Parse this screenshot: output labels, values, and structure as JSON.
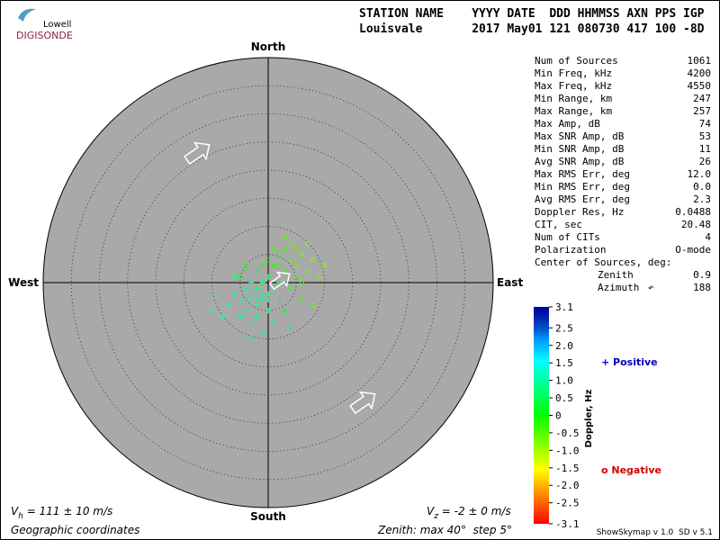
{
  "logo": {
    "top": "Lowell",
    "bottom": "DIGISONDE"
  },
  "header": {
    "labels": "STATION NAME    YYYY DATE  DDD HHMMSS AXN PPS IGP",
    "values": "Louisvale       2017 May01 121 080730 417 100 -8D"
  },
  "stats": [
    [
      "Num of Sources",
      "1061"
    ],
    [
      "Min Freq, kHz",
      "4200"
    ],
    [
      "Max Freq, kHz",
      "4550"
    ],
    [
      "Min Range, km",
      "247"
    ],
    [
      "Max Range, km",
      "257"
    ],
    [
      "Max Amp, dB",
      "74"
    ],
    [
      "Max SNR Amp, dB",
      "53"
    ],
    [
      "Min SNR Amp, dB",
      "11"
    ],
    [
      "Avg SNR Amp, dB",
      "26"
    ],
    [
      "Max RMS Err, deg",
      "12.0"
    ],
    [
      "Min RMS Err, deg",
      "0.0"
    ],
    [
      "Avg RMS Err, deg",
      "2.3"
    ],
    [
      "Doppler Res, Hz",
      "0.0488"
    ],
    [
      "CIT, sec",
      "20.48"
    ],
    [
      "Num of CITs",
      "4"
    ],
    [
      "Polarization",
      "O-mode"
    ]
  ],
  "center": {
    "title": "Center of Sources, deg:",
    "zenith_label": "Zenith",
    "zenith": "0.9",
    "azimuth_label": "Azimuth",
    "azimuth": "188"
  },
  "plot": {
    "north": "North",
    "south": "South",
    "east": "East",
    "west": "West",
    "zenith_max": 40,
    "zenith_step": 5,
    "sources": [
      [
        -2,
        -1,
        0.8
      ],
      [
        -3,
        -2,
        1.0
      ],
      [
        -1,
        -3,
        0.9
      ],
      [
        -4,
        -1,
        1.1
      ],
      [
        0,
        -2,
        0.6
      ],
      [
        -2,
        -4,
        1.0
      ],
      [
        -5,
        -3,
        1.2
      ],
      [
        -3,
        0,
        0.7
      ],
      [
        1,
        -1,
        0.5
      ],
      [
        -1,
        0,
        0.6
      ],
      [
        -6,
        -2,
        1.0
      ],
      [
        -4,
        -5,
        1.1
      ],
      [
        -2,
        -6,
        0.9
      ],
      [
        0,
        -5,
        0.7
      ],
      [
        2,
        -3,
        0.5
      ],
      [
        -7,
        -4,
        1.3
      ],
      [
        -3,
        -7,
        1.0
      ],
      [
        -8,
        -6,
        1.2
      ],
      [
        1,
        -7,
        0.8
      ],
      [
        -1,
        -9,
        0.9
      ],
      [
        3,
        -5,
        0.4
      ],
      [
        -5,
        -6,
        1.1
      ],
      [
        -9,
        -2,
        1.2
      ],
      [
        -6,
        1,
        0.8
      ],
      [
        -2,
        2,
        0.5
      ],
      [
        0,
        1,
        0.4
      ],
      [
        -4,
        2,
        0.6
      ],
      [
        2,
        0,
        0.3
      ],
      [
        -10,
        -5,
        1.3
      ],
      [
        4,
        -8,
        0.6
      ],
      [
        -3,
        -10,
        1.0
      ],
      [
        -1,
        -2,
        0.8
      ],
      [
        -2,
        -3,
        0.9
      ],
      [
        -3,
        -3,
        1.0
      ],
      [
        -4,
        -3,
        1.0
      ],
      [
        0,
        -3,
        0.7
      ],
      [
        3,
        2,
        -0.4
      ],
      [
        4,
        4,
        -0.5
      ],
      [
        2,
        5,
        -0.3
      ],
      [
        5,
        3,
        -0.6
      ],
      [
        6,
        5,
        -0.7
      ],
      [
        1,
        3,
        -0.2
      ],
      [
        7,
        2,
        -0.6
      ],
      [
        3,
        6,
        -0.5
      ],
      [
        5,
        1,
        -0.4
      ],
      [
        8,
        4,
        -0.8
      ],
      [
        4,
        7,
        -0.6
      ],
      [
        2,
        3,
        -0.3
      ],
      [
        6,
        0,
        -0.5
      ],
      [
        9,
        1,
        -0.7
      ],
      [
        0,
        4,
        -0.2
      ],
      [
        -1,
        3,
        -0.2
      ],
      [
        3,
        8,
        -0.5
      ],
      [
        7,
        7,
        -0.8
      ],
      [
        10,
        3,
        -0.8
      ],
      [
        4,
        -1,
        -0.3
      ],
      [
        6,
        -3,
        -0.4
      ],
      [
        8,
        -4,
        -0.6
      ],
      [
        -4,
        3,
        -0.1
      ],
      [
        -5,
        1,
        -0.1
      ],
      [
        1,
        6,
        -0.3
      ],
      [
        5,
        6,
        -0.6
      ]
    ]
  },
  "colorbar": {
    "title": "Doppler, Hz",
    "lim": [
      -3.1,
      3.1
    ],
    "ticks": [
      3.1,
      2.5,
      {
        "value": 2,
        "label": "2.0"
      },
      1.5,
      {
        "value": 1,
        "label": "1.0"
      },
      0.5,
      0,
      -0.5,
      {
        "value": -1,
        "label": "-1.0"
      },
      -1.5,
      {
        "value": -2,
        "label": "-2.0"
      },
      -2.5,
      -3.1
    ]
  },
  "legend": {
    "positive": "+ Positive",
    "negative": "o Negative"
  },
  "footer": {
    "vh_symbol": "V",
    "vh_sub": "h",
    "vh_text": " = 111 ± 10 m/s",
    "vz_symbol": "V",
    "vz_sub": "z",
    "vz_text": " = -2 ± 0 m/s",
    "coords": "Geographic coordinates",
    "zenith": "Zenith: max 40°  step 5°",
    "version": "ShowSkymap v 1.0  SD v 5.1"
  }
}
